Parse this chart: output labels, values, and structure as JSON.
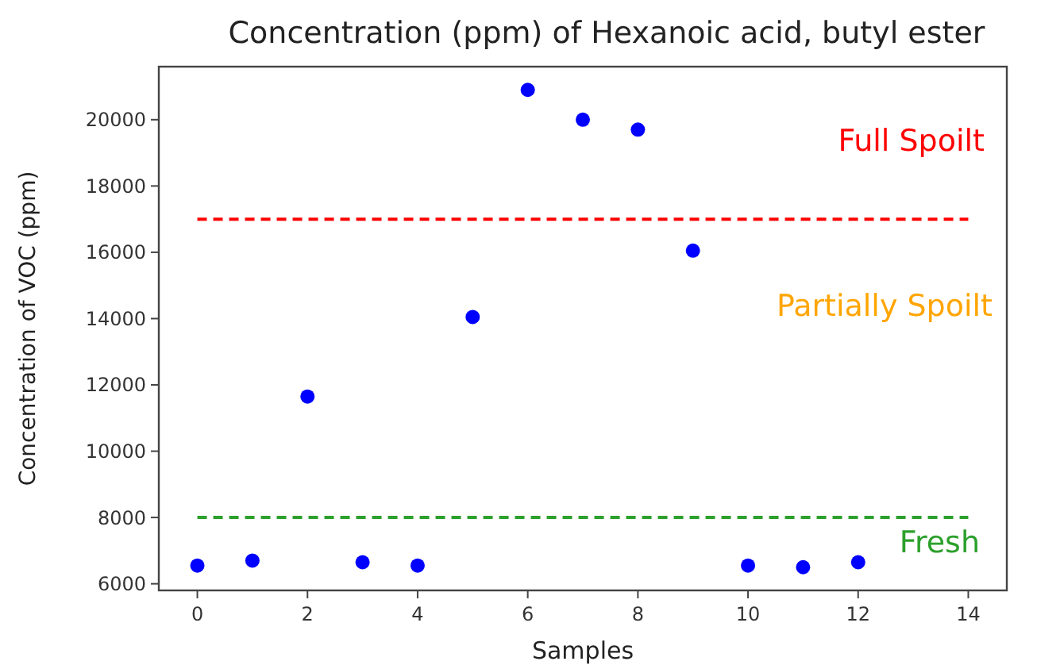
{
  "chart_data": {
    "type": "scatter",
    "title": "Concentration (ppm) of Hexanoic acid, butyl ester",
    "xlabel": "Samples",
    "ylabel": "Concentration of VOC (ppm)",
    "x": [
      0,
      1,
      2,
      3,
      4,
      5,
      6,
      7,
      8,
      9,
      10,
      11,
      12
    ],
    "series": [
      {
        "color": "#0000ff",
        "values": [
          6550,
          6700,
          11650,
          6650,
          6550,
          14050,
          20900,
          20000,
          19700,
          16050,
          6550,
          6500,
          6650
        ]
      }
    ],
    "xlim": [
      -0.7,
      14.7
    ],
    "xticks": [
      0,
      2,
      4,
      6,
      8,
      10,
      12,
      14
    ],
    "ylim": [
      5800,
      21600
    ],
    "yticks": [
      6000,
      8000,
      10000,
      12000,
      14000,
      16000,
      18000,
      20000
    ],
    "marker": "circle",
    "grid": false,
    "ref_lines": [
      {
        "axis": "y",
        "value": 17000,
        "color": "#ff0000",
        "line_style": "dashed"
      },
      {
        "axis": "y",
        "value": 8000,
        "color": "#2ca02c",
        "line_style": "dashed"
      }
    ],
    "annotations": [
      "Full Spoilt",
      "Partially Spoilt",
      "Fresh"
    ]
  }
}
